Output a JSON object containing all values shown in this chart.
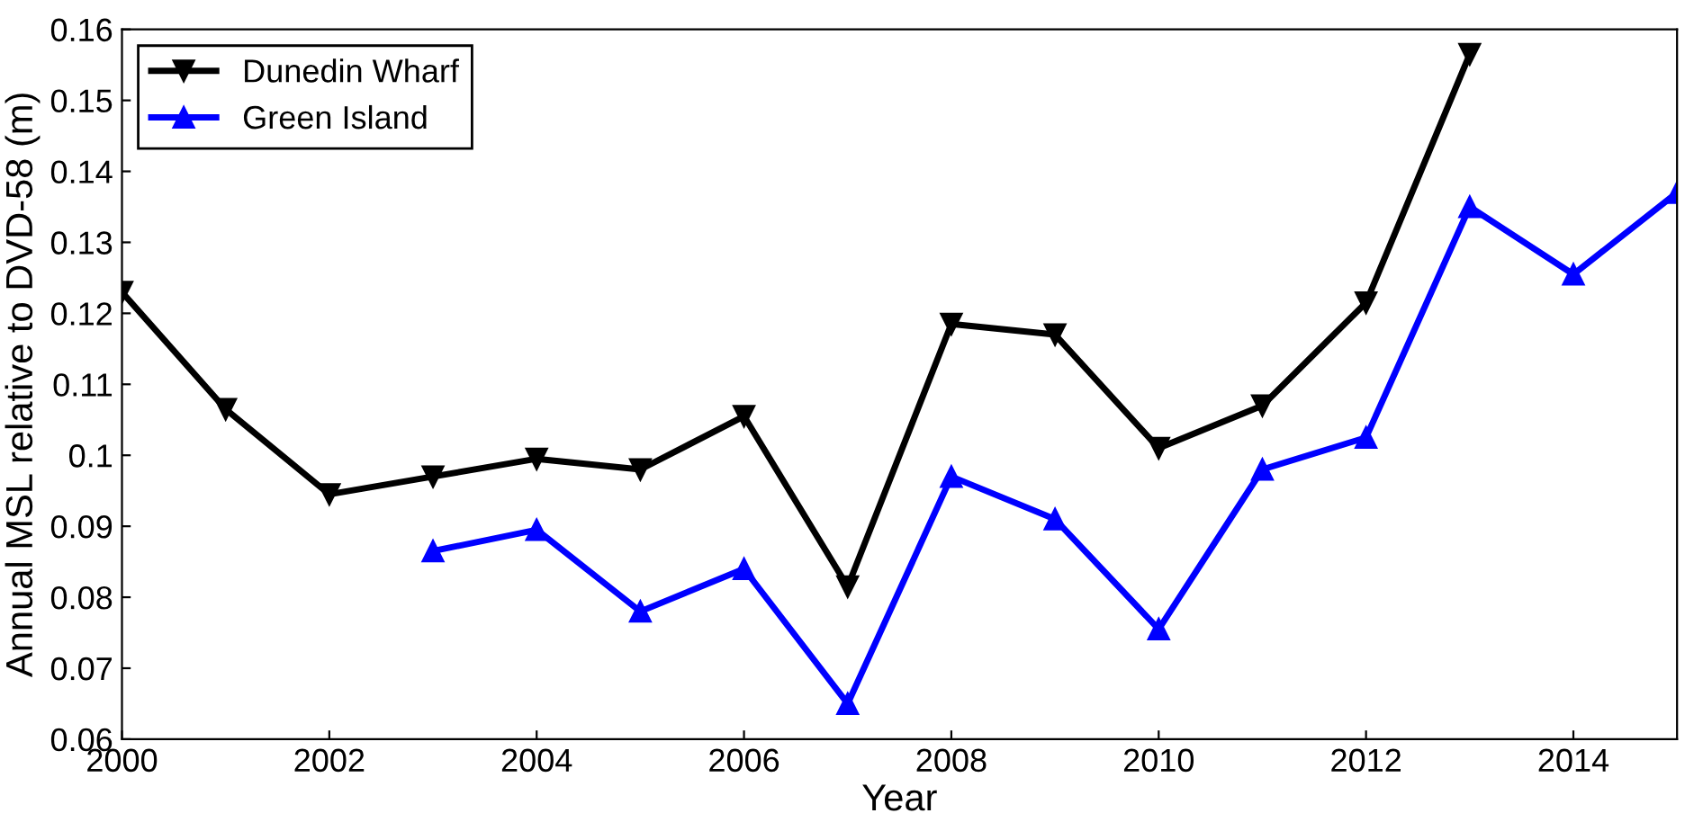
{
  "chart_data": {
    "type": "line",
    "xlabel": "Year",
    "ylabel": "Annual MSL relative to DVD-58 (m)",
    "series": [
      {
        "name": "Dunedin Wharf",
        "color": "#000000",
        "marker": "triangle_down",
        "x": [
          2000,
          2001,
          2002,
          2003,
          2004,
          2005,
          2006,
          2007,
          2008,
          2009,
          2010,
          2011,
          2012,
          2013
        ],
        "values": [
          0.123,
          0.1065,
          0.0945,
          0.097,
          0.0995,
          0.098,
          0.1055,
          0.0815,
          0.1185,
          0.117,
          0.101,
          0.107,
          0.1215,
          0.1565
        ]
      },
      {
        "name": "Green Island",
        "color": "#0000ff",
        "marker": "triangle",
        "x": [
          2003,
          2004,
          2005,
          2006,
          2007,
          2008,
          2009,
          2010,
          2011,
          2012,
          2013,
          2014,
          2015
        ],
        "values": [
          0.0865,
          0.0895,
          0.078,
          0.084,
          0.065,
          0.097,
          0.091,
          0.0755,
          0.098,
          0.1025,
          0.135,
          0.1255,
          0.137
        ]
      }
    ],
    "xlim": [
      2000,
      2015
    ],
    "xticks": [
      2000,
      2002,
      2004,
      2006,
      2008,
      2010,
      2012,
      2014
    ],
    "ylim": [
      0.06,
      0.16
    ],
    "yticks": [
      0.06,
      0.07,
      0.08,
      0.09,
      {
        "value": 0.1,
        "label": "0.1"
      },
      0.11,
      0.12,
      0.13,
      0.14,
      0.15,
      0.16
    ],
    "grid": false,
    "legend": "top left",
    "line_style": "solid"
  }
}
